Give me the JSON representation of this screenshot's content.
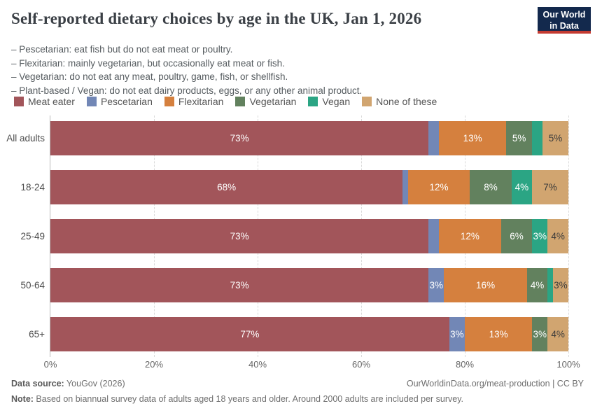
{
  "header": {
    "title": "Self-reported dietary choices by age in the UK, Jan 1, 2026",
    "subtitle_lines": [
      "– Pescetarian: eat fish but do not eat meat or poultry.",
      "– Flexitarian: mainly vegetarian, but occasionally eat meat or fish.",
      "– Vegetarian: do not eat any meat, poultry, game, fish, or shellfish.",
      "– Plant-based / Vegan: do not eat dairy products, eggs, or any other animal product."
    ],
    "logo": {
      "line1": "Our World",
      "line2": "in Data",
      "bg_color": "#13294d",
      "accent_color": "#c43b31"
    }
  },
  "legend": {
    "items": [
      {
        "label": "Meat eater",
        "color": "#a2555a"
      },
      {
        "label": "Pescetarian",
        "color": "#7287b6"
      },
      {
        "label": "Flexitarian",
        "color": "#d5803e"
      },
      {
        "label": "Vegetarian",
        "color": "#62815e"
      },
      {
        "label": "Vegan",
        "color": "#2ba584"
      },
      {
        "label": "None of these",
        "color": "#d1a570"
      }
    ]
  },
  "chart_data": {
    "type": "bar",
    "stacked": true,
    "orientation": "horizontal",
    "title": "Self-reported dietary choices by age in the UK, Jan 1, 2026",
    "categories": [
      "All adults",
      "18-24",
      "25-49",
      "50-64",
      "65+"
    ],
    "series": [
      {
        "name": "Meat eater",
        "color": "#a2555a",
        "label_color": "#ffffff",
        "values": [
          73,
          68,
          73,
          73,
          77
        ]
      },
      {
        "name": "Pescetarian",
        "color": "#7287b6",
        "label_color": "#ffffff",
        "values": [
          2,
          1,
          2,
          3,
          3
        ]
      },
      {
        "name": "Flexitarian",
        "color": "#d5803e",
        "label_color": "#ffffff",
        "values": [
          13,
          12,
          12,
          16,
          13
        ]
      },
      {
        "name": "Vegetarian",
        "color": "#62815e",
        "label_color": "#ffffff",
        "values": [
          5,
          8,
          6,
          4,
          3
        ]
      },
      {
        "name": "Vegan",
        "color": "#2ba584",
        "label_color": "#ffffff",
        "values": [
          2,
          4,
          3,
          1,
          0
        ]
      },
      {
        "name": "None of these",
        "color": "#d1a570",
        "label_color": "#3b3b3b",
        "values": [
          5,
          7,
          4,
          3,
          4
        ]
      }
    ],
    "value_suffix": "%",
    "label_min_value": 3,
    "xlim": [
      0,
      100
    ],
    "x_ticks": [
      {
        "value": 0,
        "label": "0%"
      },
      {
        "value": 20,
        "label": "20%"
      },
      {
        "value": 40,
        "label": "40%"
      },
      {
        "value": 60,
        "label": "60%"
      },
      {
        "value": 80,
        "label": "80%"
      },
      {
        "value": 100,
        "label": "100%"
      }
    ],
    "grid": "dashed-vertical",
    "legend_position": "top"
  },
  "footer": {
    "datasource_label": "Data source:",
    "datasource_value": " YouGov (2026)",
    "link": "OurWorldinData.org/meat-production",
    "license": " | CC BY",
    "note_label": "Note:",
    "note_value": " Based on biannual survey data of adults aged 18 years and older. Around 2000 adults are included per survey."
  }
}
